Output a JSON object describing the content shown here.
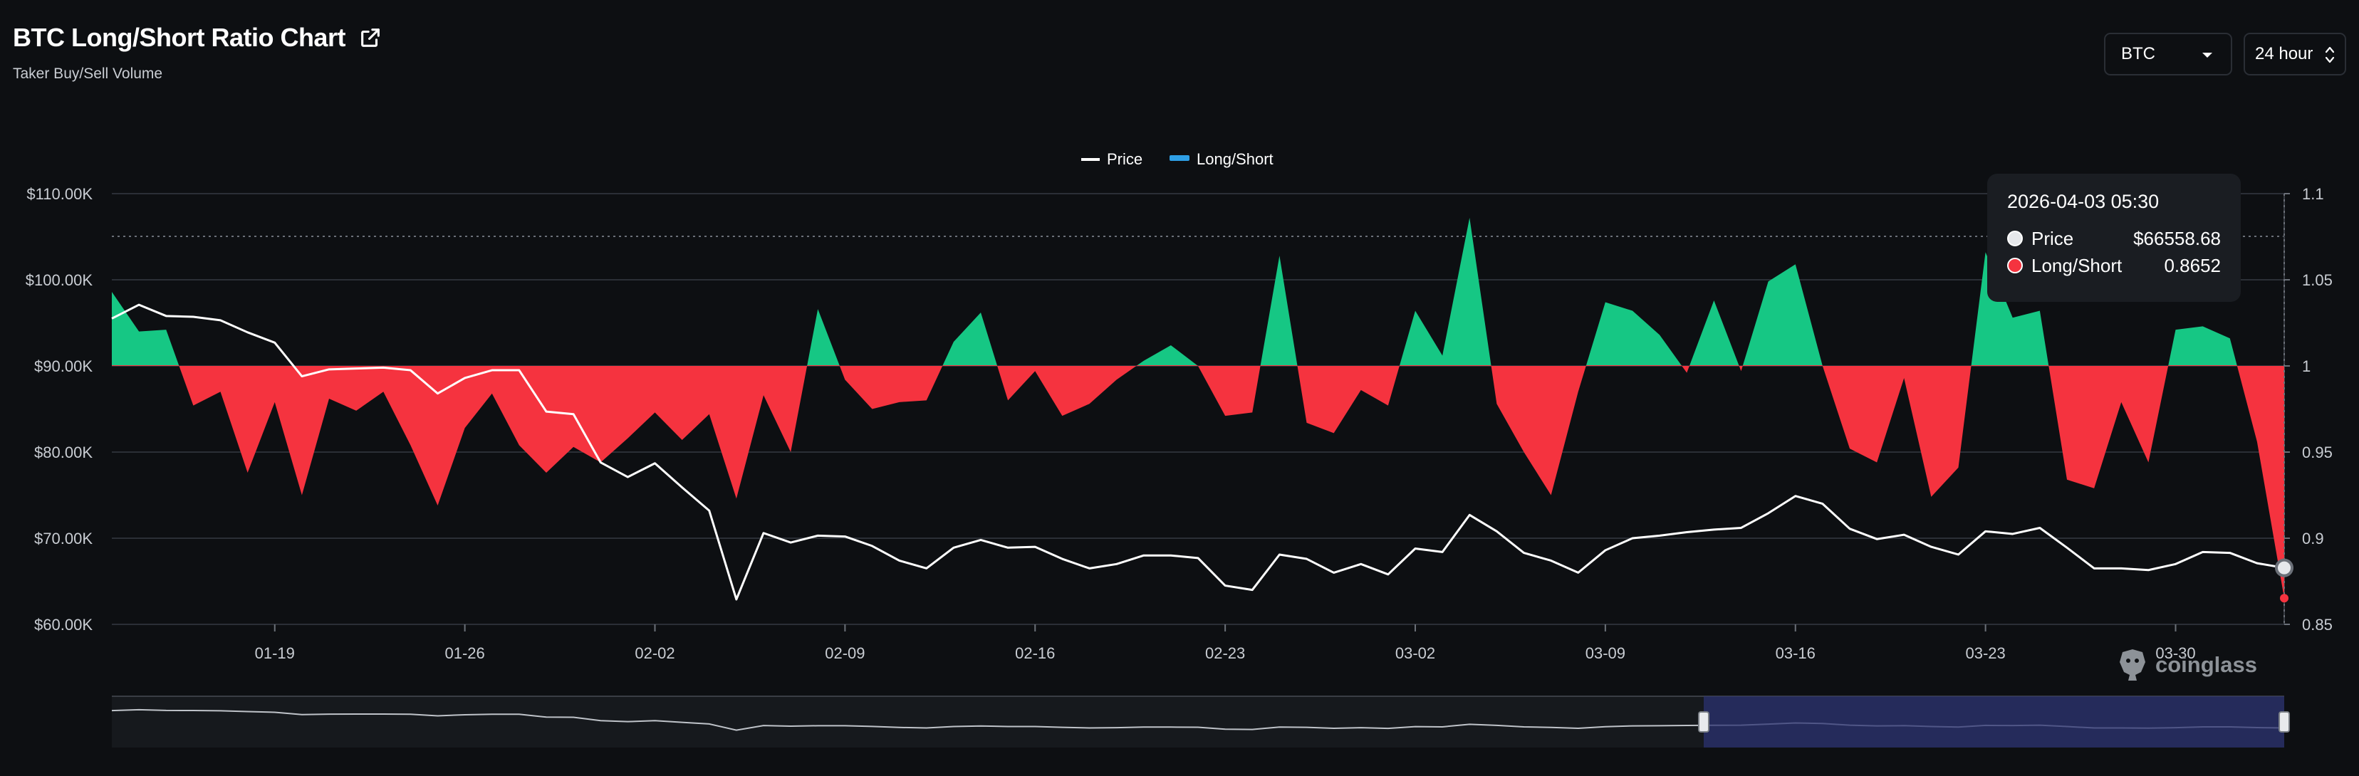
{
  "header": {
    "title": "BTC Long/Short Ratio Chart",
    "subtitle": "Taker Buy/Sell Volume",
    "share_icon": "external-link-icon"
  },
  "controls": {
    "coin_select": {
      "value": "BTC",
      "icon": "chevron-down-icon"
    },
    "interval_select": {
      "value": "24 hour",
      "icon": "up-down-chevron-icon"
    }
  },
  "tooltip": {
    "date": "2026-04-03 05:30",
    "rows": [
      {
        "label": "Price",
        "value": "$66558.68",
        "color": "#e6e8eb"
      },
      {
        "label": "Long/Short",
        "value": "0.8652",
        "color": "#f5333f"
      }
    ]
  },
  "brand": {
    "name": "coinglass",
    "icon": "coinglass-logo-icon"
  },
  "colors": {
    "background": "#0d0f12",
    "long": "#16c784",
    "short": "#f5333f",
    "price": "#ffffff",
    "zoom_window": "#2b3270"
  },
  "chart_data": {
    "type": "area",
    "legend": {
      "position": "top-center",
      "entries": [
        "Price",
        "Long/Short"
      ]
    },
    "grid": true,
    "x_ticks": [
      "01-19",
      "01-26",
      "02-02",
      "02-09",
      "02-16",
      "02-23",
      "03-02",
      "03-09",
      "03-16",
      "03-23",
      "03-30"
    ],
    "x_range": [
      "2026-01-13",
      "2026-04-03"
    ],
    "y_left": {
      "ticks": [
        "$110.00K",
        "$100.00K",
        "$90.00K",
        "$80.00K",
        "$70.00K",
        "$60.00K"
      ],
      "range": [
        60000,
        110000
      ]
    },
    "y_right": {
      "ticks": [
        "1.1",
        "1.05",
        "1",
        "0.95",
        "0.9",
        "0.85"
      ],
      "range": [
        0.85,
        1.1
      ],
      "baseline": 1
    },
    "series": [
      {
        "name": "Price",
        "values": [
          95500,
          97100,
          95800,
          95700,
          95300,
          93900,
          92700,
          88800,
          89600,
          89700,
          89800,
          89500,
          86800,
          88600,
          89500,
          89500,
          84700,
          84400,
          78800,
          77100,
          78700,
          75900,
          73200,
          62900,
          70600,
          69500,
          70300,
          70200,
          69100,
          67400,
          66500,
          68900,
          69800,
          68900,
          69000,
          67600,
          66500,
          67000,
          68000,
          68000,
          67700,
          64500,
          64000,
          68100,
          67600,
          66000,
          67000,
          65800,
          68800,
          68400,
          72700,
          70800,
          68300,
          67400,
          66000,
          68600,
          70000,
          70300,
          70700,
          71000,
          71200,
          72900,
          74900,
          74000,
          71100,
          69900,
          70400,
          69000,
          68100,
          70800,
          70500,
          71200,
          68900,
          66500,
          66500,
          66300,
          67000,
          68400,
          68300,
          67100,
          66560
        ]
      },
      {
        "name": "Long/Short",
        "values": [
          1.043,
          1.02,
          1.021,
          0.977,
          0.985,
          0.938,
          0.979,
          0.925,
          0.981,
          0.974,
          0.985,
          0.954,
          0.919,
          0.964,
          0.984,
          0.954,
          0.938,
          0.953,
          0.944,
          0.958,
          0.973,
          0.957,
          0.972,
          0.923,
          0.983,
          0.95,
          1.033,
          0.992,
          0.975,
          0.979,
          0.98,
          1.014,
          1.031,
          0.98,
          0.997,
          0.971,
          0.978,
          0.992,
          1.003,
          1.012,
          1.0,
          0.971,
          0.973,
          1.064,
          0.967,
          0.961,
          0.986,
          0.977,
          1.032,
          1.006,
          1.086,
          0.978,
          0.95,
          0.925,
          0.985,
          1.037,
          1.032,
          1.018,
          0.996,
          1.038,
          0.997,
          1.049,
          1.059,
          1.0,
          0.952,
          0.944,
          0.993,
          0.924,
          0.941,
          1.066,
          1.028,
          1.032,
          0.934,
          0.929,
          0.979,
          0.944,
          1.021,
          1.023,
          1.016,
          0.956,
          0.8652
        ]
      }
    ]
  }
}
